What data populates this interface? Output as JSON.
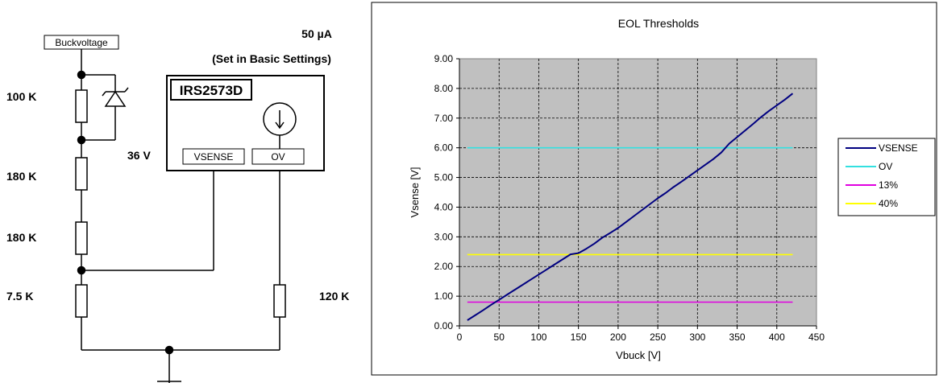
{
  "schematic": {
    "buck_label": "Buckvoltage",
    "current_label": "50    µA",
    "current_note": "(Set in Basic Settings)",
    "chip_name": "IRS2573D",
    "pin_vsense": "VSENSE",
    "pin_ov": "OV",
    "zener_voltage": "36  V",
    "resistors": [
      "100  K",
      "180  K",
      "180  K",
      "7.5  K",
      "120  K"
    ]
  },
  "chart_data": {
    "type": "line",
    "title": "EOL Thresholds",
    "xlabel": "Vbuck [V]",
    "ylabel": "Vsense [V]",
    "xlim": [
      0,
      450
    ],
    "ylim": [
      0,
      9
    ],
    "x_ticks": [
      "0",
      "50",
      "100",
      "150",
      "200",
      "250",
      "300",
      "350",
      "400",
      "450"
    ],
    "y_ticks": [
      "0.00",
      "1.00",
      "2.00",
      "3.00",
      "4.00",
      "5.00",
      "6.00",
      "7.00",
      "8.00",
      "9.00"
    ],
    "grid": true,
    "plot_background": "#c0c0c0",
    "legend_position": "right",
    "series": [
      {
        "name": "VSENSE",
        "color": "#000080",
        "x": [
          10,
          20,
          30,
          40,
          50,
          60,
          70,
          80,
          90,
          100,
          110,
          120,
          130,
          140,
          150,
          160,
          170,
          180,
          190,
          200,
          210,
          220,
          230,
          240,
          250,
          260,
          270,
          280,
          290,
          300,
          310,
          320,
          330,
          340,
          350,
          360,
          370,
          380,
          390,
          400,
          410,
          420
        ],
        "y": [
          0.19,
          0.36,
          0.53,
          0.71,
          0.88,
          1.05,
          1.22,
          1.39,
          1.56,
          1.73,
          1.9,
          2.07,
          2.24,
          2.41,
          2.45,
          2.6,
          2.77,
          2.97,
          3.13,
          3.3,
          3.5,
          3.7,
          3.9,
          4.1,
          4.3,
          4.48,
          4.68,
          4.86,
          5.05,
          5.24,
          5.43,
          5.62,
          5.84,
          6.14,
          6.36,
          6.58,
          6.8,
          7.03,
          7.24,
          7.43,
          7.62,
          7.83
        ]
      },
      {
        "name": "OV",
        "color": "#33e0e0",
        "x": [
          10,
          420
        ],
        "y": [
          6.0,
          6.0
        ]
      },
      {
        "name": "13%",
        "color": "#e000e0",
        "x": [
          10,
          420
        ],
        "y": [
          0.8,
          0.8
        ]
      },
      {
        "name": "40%",
        "color": "#ffff00",
        "x": [
          10,
          420
        ],
        "y": [
          2.4,
          2.4
        ]
      }
    ]
  }
}
